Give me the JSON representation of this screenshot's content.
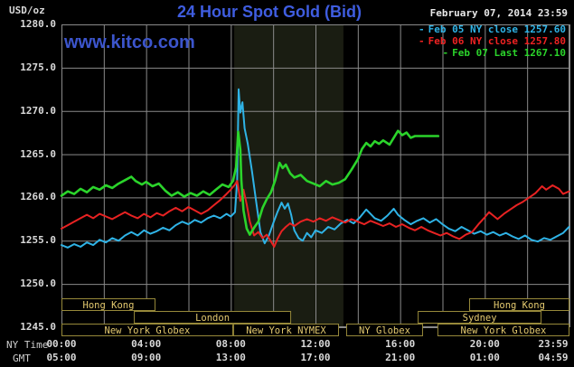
{
  "header": {
    "unit": "USD/oz",
    "title": "24 Hour Spot Gold (Bid)",
    "datetime": "February 07, 2014 23:59"
  },
  "watermark": "www.kitco.com",
  "legend": {
    "items": [
      {
        "label": "Feb 05 NY close 1257.60",
        "color": "#2fb3e6"
      },
      {
        "label": "Feb 06 NY close 1257.80",
        "color": "#ee2222"
      },
      {
        "label": "Feb 07 Last 1267.10",
        "color": "#2bd42b"
      }
    ]
  },
  "footer": {
    "ny_time_label": "NY Time",
    "gmt_label": "GMT"
  },
  "chart_data": {
    "type": "line",
    "title": "24 Hour Spot Gold (Bid)",
    "ylabel": "USD/oz",
    "ylim": [
      1245,
      1280
    ],
    "x_hours_range": [
      0,
      24
    ],
    "plot_bg": "#000000",
    "grid": {
      "show": true,
      "x_step_hours": 2,
      "color": "#8a8a8a"
    },
    "highlight_band": {
      "start_h": 8.16,
      "end_h": 13.32,
      "color": "#1a1d12"
    },
    "y_ticks": [
      {
        "value": 1280,
        "label": "1280.0"
      },
      {
        "value": 1275,
        "label": "1275.0"
      },
      {
        "value": 1270,
        "label": "1270.0"
      },
      {
        "value": 1265,
        "label": "1265.0"
      },
      {
        "value": 1260,
        "label": "1260.0"
      },
      {
        "value": 1255,
        "label": "1255.0"
      },
      {
        "value": 1250,
        "label": "1250.0"
      },
      {
        "value": 1245,
        "label": "1245.0"
      }
    ],
    "x_ticks": {
      "ny": [
        {
          "h": 0,
          "label": "00:00"
        },
        {
          "h": 4,
          "label": "04:00"
        },
        {
          "h": 8,
          "label": "08:00"
        },
        {
          "h": 12,
          "label": "12:00"
        },
        {
          "h": 16,
          "label": "16:00"
        },
        {
          "h": 20,
          "label": "20:00"
        },
        {
          "h": 23.983,
          "label": "23:59"
        }
      ],
      "gmt": [
        {
          "h": 0,
          "label": "05:00"
        },
        {
          "h": 4,
          "label": "09:00"
        },
        {
          "h": 8,
          "label": "13:00"
        },
        {
          "h": 12,
          "label": "17:00"
        },
        {
          "h": 16,
          "label": "21:00"
        },
        {
          "h": 20,
          "label": "01:00"
        },
        {
          "h": 23.983,
          "label": "04:59"
        }
      ]
    },
    "session_style": {
      "border": "#97893a",
      "text": "#e3c96f",
      "fill": "#000000"
    },
    "sessions": [
      {
        "row": 0,
        "label": "Hong Kong",
        "start_h": 0,
        "end_h": 4.44
      },
      {
        "row": 0,
        "label": "Hong Kong",
        "start_h": 19.26,
        "end_h": 24
      },
      {
        "row": 1,
        "label": "London",
        "start_h": 3.42,
        "end_h": 10.85
      },
      {
        "row": 1,
        "label": "Sydney",
        "start_h": 16.83,
        "end_h": 22.68
      },
      {
        "row": 2,
        "label": "New York Globex",
        "start_h": 0,
        "end_h": 8.11
      },
      {
        "row": 2,
        "label": "New York NYMEX",
        "start_h": 8.11,
        "end_h": 13.11
      },
      {
        "row": 2,
        "label": "NY Globex",
        "start_h": 13.45,
        "end_h": 17.08
      },
      {
        "row": 2,
        "label": "New York Globex",
        "start_h": 17.76,
        "end_h": 24
      }
    ],
    "series": [
      {
        "name": "Feb 05 NY close",
        "close": 1257.6,
        "color": "#2fb3e6",
        "width": 2,
        "points": [
          [
            0,
            1254.5
          ],
          [
            0.3,
            1254.2
          ],
          [
            0.6,
            1254.6
          ],
          [
            0.9,
            1254.3
          ],
          [
            1.2,
            1254.8
          ],
          [
            1.5,
            1254.5
          ],
          [
            1.8,
            1255.1
          ],
          [
            2.1,
            1254.8
          ],
          [
            2.4,
            1255.3
          ],
          [
            2.7,
            1255.0
          ],
          [
            3.0,
            1255.6
          ],
          [
            3.3,
            1256.0
          ],
          [
            3.6,
            1255.6
          ],
          [
            3.9,
            1256.2
          ],
          [
            4.2,
            1255.8
          ],
          [
            4.5,
            1256.1
          ],
          [
            4.8,
            1256.5
          ],
          [
            5.1,
            1256.2
          ],
          [
            5.4,
            1256.8
          ],
          [
            5.7,
            1257.2
          ],
          [
            6.0,
            1256.9
          ],
          [
            6.3,
            1257.4
          ],
          [
            6.6,
            1257.1
          ],
          [
            6.9,
            1257.6
          ],
          [
            7.2,
            1257.9
          ],
          [
            7.5,
            1257.6
          ],
          [
            7.8,
            1258.1
          ],
          [
            8.0,
            1257.8
          ],
          [
            8.2,
            1258.3
          ],
          [
            8.3,
            1262.0
          ],
          [
            8.37,
            1272.5
          ],
          [
            8.45,
            1269.8
          ],
          [
            8.55,
            1271.0
          ],
          [
            8.65,
            1268.0
          ],
          [
            8.8,
            1266.2
          ],
          [
            9.0,
            1263.0
          ],
          [
            9.2,
            1259.5
          ],
          [
            9.4,
            1256.0
          ],
          [
            9.6,
            1254.7
          ],
          [
            9.8,
            1255.6
          ],
          [
            10.0,
            1257.0
          ],
          [
            10.2,
            1258.3
          ],
          [
            10.4,
            1259.4
          ],
          [
            10.55,
            1258.7
          ],
          [
            10.7,
            1259.3
          ],
          [
            10.85,
            1258.0
          ],
          [
            11.0,
            1256.2
          ],
          [
            11.2,
            1255.3
          ],
          [
            11.4,
            1255.0
          ],
          [
            11.6,
            1255.9
          ],
          [
            11.8,
            1255.4
          ],
          [
            12.0,
            1256.2
          ],
          [
            12.3,
            1255.9
          ],
          [
            12.6,
            1256.6
          ],
          [
            12.9,
            1256.3
          ],
          [
            13.2,
            1257.0
          ],
          [
            13.5,
            1257.4
          ],
          [
            13.8,
            1257.0
          ],
          [
            14.1,
            1257.7
          ],
          [
            14.4,
            1258.6
          ],
          [
            14.6,
            1258.1
          ],
          [
            14.8,
            1257.6
          ],
          [
            15.1,
            1257.3
          ],
          [
            15.4,
            1257.9
          ],
          [
            15.7,
            1258.7
          ],
          [
            15.9,
            1258.0
          ],
          [
            16.2,
            1257.4
          ],
          [
            16.5,
            1256.9
          ],
          [
            16.8,
            1257.3
          ],
          [
            17.1,
            1257.6
          ],
          [
            17.4,
            1257.1
          ],
          [
            17.7,
            1257.5
          ],
          [
            18.0,
            1256.9
          ],
          [
            18.3,
            1256.4
          ],
          [
            18.6,
            1256.1
          ],
          [
            18.9,
            1256.6
          ],
          [
            19.2,
            1256.2
          ],
          [
            19.5,
            1255.8
          ],
          [
            19.8,
            1256.1
          ],
          [
            20.1,
            1255.7
          ],
          [
            20.4,
            1256.0
          ],
          [
            20.7,
            1255.6
          ],
          [
            21.0,
            1255.9
          ],
          [
            21.3,
            1255.5
          ],
          [
            21.6,
            1255.2
          ],
          [
            21.9,
            1255.6
          ],
          [
            22.2,
            1255.1
          ],
          [
            22.5,
            1254.9
          ],
          [
            22.8,
            1255.3
          ],
          [
            23.1,
            1255.1
          ],
          [
            23.4,
            1255.5
          ],
          [
            23.7,
            1255.9
          ],
          [
            23.98,
            1256.6
          ]
        ]
      },
      {
        "name": "Feb 06 NY close",
        "close": 1257.8,
        "color": "#e82222",
        "width": 2,
        "points": [
          [
            0,
            1256.4
          ],
          [
            0.3,
            1256.8
          ],
          [
            0.6,
            1257.2
          ],
          [
            0.9,
            1257.6
          ],
          [
            1.2,
            1258.0
          ],
          [
            1.5,
            1257.6
          ],
          [
            1.8,
            1258.1
          ],
          [
            2.1,
            1257.8
          ],
          [
            2.4,
            1257.5
          ],
          [
            2.7,
            1257.9
          ],
          [
            3.0,
            1258.3
          ],
          [
            3.3,
            1257.9
          ],
          [
            3.6,
            1257.6
          ],
          [
            3.9,
            1258.1
          ],
          [
            4.2,
            1257.7
          ],
          [
            4.5,
            1258.2
          ],
          [
            4.8,
            1257.9
          ],
          [
            5.1,
            1258.4
          ],
          [
            5.4,
            1258.8
          ],
          [
            5.7,
            1258.4
          ],
          [
            6.0,
            1258.9
          ],
          [
            6.3,
            1258.5
          ],
          [
            6.6,
            1258.1
          ],
          [
            6.9,
            1258.5
          ],
          [
            7.2,
            1259.1
          ],
          [
            7.5,
            1259.7
          ],
          [
            7.8,
            1260.4
          ],
          [
            8.0,
            1260.9
          ],
          [
            8.2,
            1261.5
          ],
          [
            8.3,
            1261.9
          ],
          [
            8.45,
            1259.6
          ],
          [
            8.6,
            1260.9
          ],
          [
            8.75,
            1259.2
          ],
          [
            8.9,
            1257.2
          ],
          [
            9.1,
            1255.6
          ],
          [
            9.3,
            1256.0
          ],
          [
            9.5,
            1255.3
          ],
          [
            9.7,
            1255.7
          ],
          [
            9.9,
            1254.9
          ],
          [
            10.05,
            1254.3
          ],
          [
            10.2,
            1255.2
          ],
          [
            10.4,
            1256.1
          ],
          [
            10.6,
            1256.6
          ],
          [
            10.8,
            1257.0
          ],
          [
            11.0,
            1256.7
          ],
          [
            11.3,
            1257.2
          ],
          [
            11.6,
            1257.5
          ],
          [
            11.9,
            1257.2
          ],
          [
            12.2,
            1257.6
          ],
          [
            12.5,
            1257.3
          ],
          [
            12.8,
            1257.7
          ],
          [
            13.1,
            1257.4
          ],
          [
            13.4,
            1257.1
          ],
          [
            13.7,
            1257.5
          ],
          [
            14.0,
            1257.2
          ],
          [
            14.3,
            1256.9
          ],
          [
            14.6,
            1257.3
          ],
          [
            14.9,
            1257.0
          ],
          [
            15.2,
            1256.7
          ],
          [
            15.5,
            1257.0
          ],
          [
            15.8,
            1256.6
          ],
          [
            16.1,
            1256.9
          ],
          [
            16.4,
            1256.5
          ],
          [
            16.7,
            1256.2
          ],
          [
            17.0,
            1256.6
          ],
          [
            17.3,
            1256.2
          ],
          [
            17.6,
            1255.9
          ],
          [
            17.9,
            1255.6
          ],
          [
            18.2,
            1255.9
          ],
          [
            18.5,
            1255.5
          ],
          [
            18.8,
            1255.2
          ],
          [
            19.1,
            1255.7
          ],
          [
            19.4,
            1256.0
          ],
          [
            19.7,
            1256.9
          ],
          [
            20.0,
            1257.7
          ],
          [
            20.2,
            1258.3
          ],
          [
            20.4,
            1257.9
          ],
          [
            20.6,
            1257.5
          ],
          [
            20.9,
            1258.1
          ],
          [
            21.2,
            1258.6
          ],
          [
            21.5,
            1259.1
          ],
          [
            21.8,
            1259.5
          ],
          [
            22.1,
            1260.0
          ],
          [
            22.4,
            1260.5
          ],
          [
            22.7,
            1261.3
          ],
          [
            22.9,
            1260.9
          ],
          [
            23.2,
            1261.4
          ],
          [
            23.5,
            1261.0
          ],
          [
            23.7,
            1260.4
          ],
          [
            23.98,
            1260.7
          ]
        ]
      },
      {
        "name": "Feb 07 Last",
        "close": 1267.1,
        "color": "#2bd42b",
        "width": 2.6,
        "points": [
          [
            0,
            1260.2
          ],
          [
            0.3,
            1260.7
          ],
          [
            0.6,
            1260.4
          ],
          [
            0.9,
            1261.0
          ],
          [
            1.2,
            1260.6
          ],
          [
            1.5,
            1261.2
          ],
          [
            1.8,
            1260.9
          ],
          [
            2.1,
            1261.4
          ],
          [
            2.4,
            1261.1
          ],
          [
            2.7,
            1261.6
          ],
          [
            3.0,
            1262.0
          ],
          [
            3.3,
            1262.4
          ],
          [
            3.5,
            1261.9
          ],
          [
            3.8,
            1261.5
          ],
          [
            4.0,
            1261.8
          ],
          [
            4.3,
            1261.3
          ],
          [
            4.6,
            1261.6
          ],
          [
            4.9,
            1260.8
          ],
          [
            5.2,
            1260.2
          ],
          [
            5.5,
            1260.6
          ],
          [
            5.8,
            1260.1
          ],
          [
            6.1,
            1260.5
          ],
          [
            6.4,
            1260.2
          ],
          [
            6.7,
            1260.7
          ],
          [
            7.0,
            1260.3
          ],
          [
            7.3,
            1260.9
          ],
          [
            7.6,
            1261.5
          ],
          [
            7.9,
            1261.2
          ],
          [
            8.1,
            1261.9
          ],
          [
            8.25,
            1263.5
          ],
          [
            8.35,
            1267.6
          ],
          [
            8.45,
            1265.5
          ],
          [
            8.5,
            1262.0
          ],
          [
            8.6,
            1258.5
          ],
          [
            8.75,
            1256.4
          ],
          [
            8.9,
            1255.7
          ],
          [
            9.1,
            1256.5
          ],
          [
            9.3,
            1257.2
          ],
          [
            9.5,
            1258.8
          ],
          [
            9.7,
            1259.8
          ],
          [
            9.9,
            1260.6
          ],
          [
            10.1,
            1262.0
          ],
          [
            10.3,
            1264.0
          ],
          [
            10.45,
            1263.4
          ],
          [
            10.6,
            1263.8
          ],
          [
            10.8,
            1262.8
          ],
          [
            11.0,
            1262.3
          ],
          [
            11.3,
            1262.6
          ],
          [
            11.6,
            1261.9
          ],
          [
            11.9,
            1261.6
          ],
          [
            12.2,
            1261.3
          ],
          [
            12.5,
            1261.9
          ],
          [
            12.8,
            1261.5
          ],
          [
            13.1,
            1261.7
          ],
          [
            13.4,
            1262.1
          ],
          [
            13.7,
            1263.2
          ],
          [
            14.0,
            1264.4
          ],
          [
            14.2,
            1265.6
          ],
          [
            14.4,
            1266.3
          ],
          [
            14.6,
            1265.9
          ],
          [
            14.8,
            1266.5
          ],
          [
            15.0,
            1266.2
          ],
          [
            15.2,
            1266.6
          ],
          [
            15.5,
            1266.1
          ],
          [
            15.7,
            1266.9
          ],
          [
            15.9,
            1267.7
          ],
          [
            16.1,
            1267.2
          ],
          [
            16.3,
            1267.5
          ],
          [
            16.5,
            1266.9
          ],
          [
            16.7,
            1267.1
          ],
          [
            17.8,
            1267.1
          ]
        ]
      }
    ]
  }
}
